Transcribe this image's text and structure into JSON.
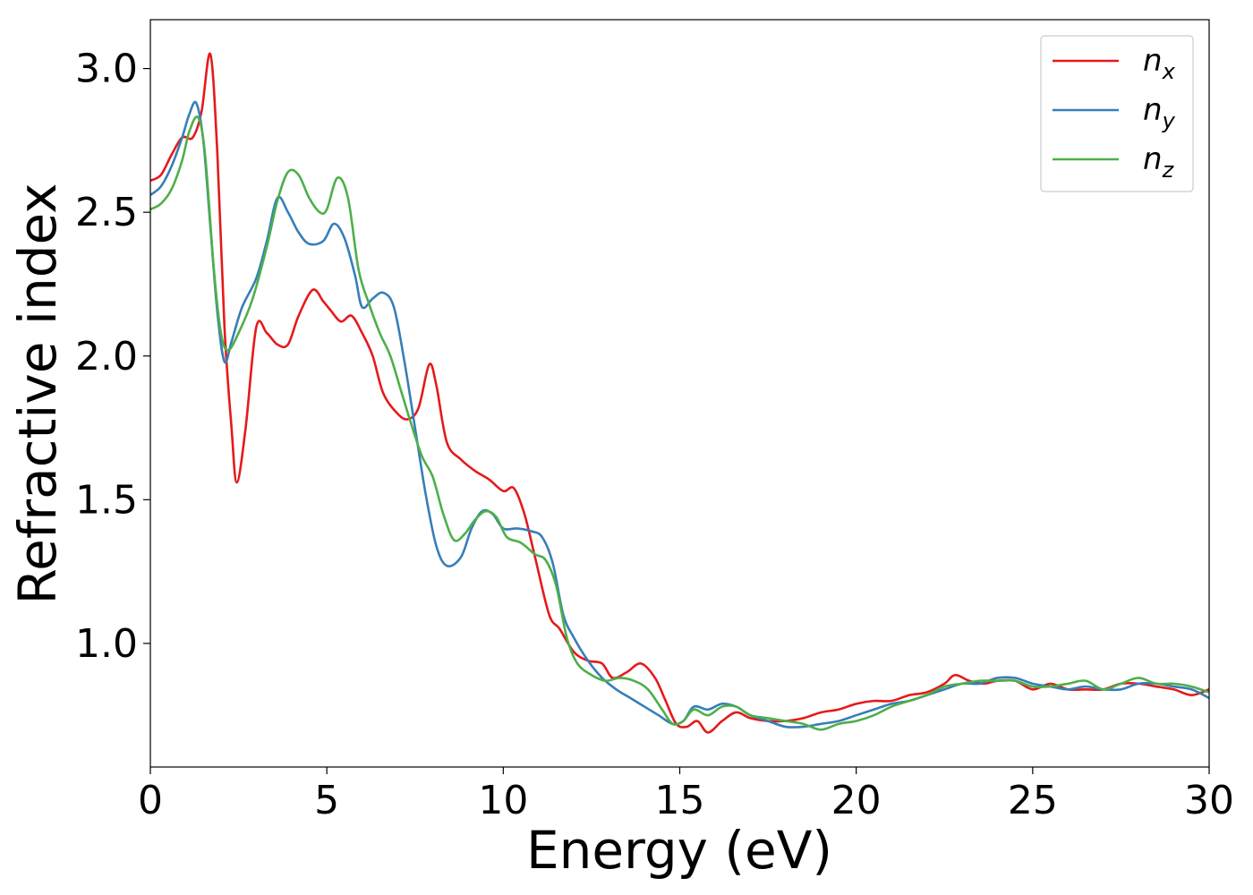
{
  "chart_data": {
    "type": "line",
    "xlabel": "Energy (eV)",
    "ylabel": "Refractive index",
    "xlim": [
      0,
      30
    ],
    "ylim": [
      0.57,
      3.17
    ],
    "xticks": [
      0,
      5,
      10,
      15,
      20,
      25,
      30
    ],
    "xtick_labels": [
      "0",
      "5",
      "10",
      "15",
      "20",
      "25",
      "30"
    ],
    "yticks": [
      1.0,
      1.5,
      2.0,
      2.5,
      3.0
    ],
    "ytick_labels": [
      "1.0",
      "1.5",
      "2.0",
      "2.5",
      "3.0"
    ],
    "grid": false,
    "legend_position": "top-right",
    "series": [
      {
        "name": "n",
        "subscript": "x",
        "color": "#e41a1c",
        "x": [
          0,
          0.3,
          0.6,
          0.9,
          1.2,
          1.45,
          1.7,
          1.9,
          2.1,
          2.3,
          2.45,
          2.7,
          3.0,
          3.3,
          3.6,
          3.9,
          4.2,
          4.6,
          4.9,
          5.1,
          5.4,
          5.7,
          6.0,
          6.3,
          6.6,
          7.0,
          7.3,
          7.6,
          7.9,
          8.1,
          8.4,
          8.8,
          9.2,
          9.6,
          10.0,
          10.3,
          10.6,
          10.9,
          11.3,
          11.6,
          12.0,
          12.4,
          12.8,
          13.1,
          13.5,
          13.9,
          14.3,
          14.6,
          14.9,
          15.2,
          15.5,
          15.8,
          16.2,
          16.6,
          17.0,
          17.5,
          18.0,
          18.5,
          19.0,
          19.5,
          20.0,
          20.5,
          21.0,
          21.5,
          22.0,
          22.5,
          22.8,
          23.2,
          23.6,
          24.0,
          24.5,
          25.0,
          25.5,
          26.0,
          26.5,
          27.0,
          27.5,
          28.0,
          28.5,
          29.0,
          29.5,
          30.0
        ],
        "y": [
          2.61,
          2.63,
          2.7,
          2.76,
          2.76,
          2.85,
          3.05,
          2.7,
          2.1,
          1.75,
          1.56,
          1.75,
          2.1,
          2.08,
          2.04,
          2.04,
          2.14,
          2.23,
          2.19,
          2.16,
          2.12,
          2.14,
          2.08,
          2.0,
          1.87,
          1.8,
          1.78,
          1.82,
          1.97,
          1.9,
          1.7,
          1.64,
          1.6,
          1.57,
          1.53,
          1.54,
          1.45,
          1.3,
          1.1,
          1.05,
          0.97,
          0.94,
          0.93,
          0.88,
          0.9,
          0.93,
          0.88,
          0.8,
          0.72,
          0.71,
          0.73,
          0.69,
          0.73,
          0.76,
          0.74,
          0.73,
          0.73,
          0.74,
          0.76,
          0.77,
          0.79,
          0.8,
          0.8,
          0.82,
          0.83,
          0.86,
          0.89,
          0.87,
          0.86,
          0.87,
          0.87,
          0.84,
          0.86,
          0.84,
          0.84,
          0.84,
          0.86,
          0.86,
          0.85,
          0.84,
          0.82,
          0.84
        ]
      },
      {
        "name": "n",
        "subscript": "y",
        "color": "#377eb8",
        "x": [
          0,
          0.3,
          0.6,
          0.9,
          1.1,
          1.3,
          1.5,
          1.7,
          1.9,
          2.1,
          2.3,
          2.6,
          3.0,
          3.3,
          3.6,
          3.9,
          4.2,
          4.5,
          4.9,
          5.2,
          5.5,
          5.8,
          6.0,
          6.3,
          6.6,
          6.9,
          7.2,
          7.5,
          7.8,
          8.1,
          8.4,
          8.8,
          9.1,
          9.4,
          9.7,
          10.0,
          10.4,
          10.8,
          11.1,
          11.4,
          11.7,
          12.0,
          12.4,
          12.8,
          13.2,
          13.6,
          14.0,
          14.4,
          14.8,
          15.1,
          15.4,
          15.8,
          16.2,
          16.6,
          17.0,
          17.5,
          18.0,
          18.5,
          19.0,
          19.5,
          20.0,
          20.5,
          21.0,
          21.5,
          22.0,
          22.5,
          23.0,
          23.5,
          24.0,
          24.5,
          25.0,
          25.5,
          26.0,
          26.5,
          27.0,
          27.5,
          28.0,
          28.5,
          29.0,
          29.5,
          30.0
        ],
        "y": [
          2.56,
          2.59,
          2.66,
          2.76,
          2.84,
          2.88,
          2.75,
          2.45,
          2.15,
          1.98,
          2.05,
          2.17,
          2.27,
          2.4,
          2.55,
          2.5,
          2.43,
          2.39,
          2.4,
          2.46,
          2.41,
          2.28,
          2.17,
          2.2,
          2.22,
          2.17,
          1.98,
          1.75,
          1.52,
          1.34,
          1.27,
          1.3,
          1.4,
          1.46,
          1.45,
          1.4,
          1.4,
          1.39,
          1.37,
          1.28,
          1.1,
          1.02,
          0.94,
          0.88,
          0.84,
          0.81,
          0.78,
          0.75,
          0.72,
          0.73,
          0.78,
          0.77,
          0.79,
          0.78,
          0.75,
          0.73,
          0.71,
          0.71,
          0.72,
          0.73,
          0.75,
          0.77,
          0.79,
          0.8,
          0.82,
          0.84,
          0.86,
          0.86,
          0.88,
          0.88,
          0.86,
          0.85,
          0.84,
          0.85,
          0.84,
          0.84,
          0.86,
          0.86,
          0.85,
          0.84,
          0.81
        ]
      },
      {
        "name": "n",
        "subscript": "z",
        "color": "#4daf4a",
        "x": [
          0,
          0.3,
          0.6,
          0.9,
          1.1,
          1.35,
          1.55,
          1.8,
          2.0,
          2.2,
          2.5,
          2.9,
          3.3,
          3.6,
          3.9,
          4.2,
          4.5,
          4.8,
          5.0,
          5.3,
          5.6,
          5.9,
          6.2,
          6.5,
          6.8,
          7.1,
          7.4,
          7.7,
          8.0,
          8.3,
          8.6,
          8.9,
          9.2,
          9.5,
          9.8,
          10.1,
          10.5,
          10.9,
          11.2,
          11.5,
          11.8,
          12.1,
          12.5,
          12.9,
          13.3,
          13.7,
          14.1,
          14.5,
          14.8,
          15.1,
          15.4,
          15.8,
          16.2,
          16.6,
          17.0,
          17.5,
          18.0,
          18.5,
          19.0,
          19.5,
          20.0,
          20.5,
          21.0,
          21.5,
          22.0,
          22.5,
          23.0,
          23.5,
          24.0,
          24.5,
          25.0,
          25.5,
          26.0,
          26.5,
          27.0,
          27.5,
          28.0,
          28.5,
          29.0,
          29.5,
          30.0
        ],
        "y": [
          2.51,
          2.53,
          2.58,
          2.68,
          2.78,
          2.83,
          2.7,
          2.3,
          2.08,
          2.02,
          2.08,
          2.2,
          2.38,
          2.54,
          2.64,
          2.63,
          2.55,
          2.5,
          2.51,
          2.62,
          2.55,
          2.3,
          2.18,
          2.08,
          2.0,
          1.88,
          1.76,
          1.65,
          1.58,
          1.45,
          1.36,
          1.38,
          1.43,
          1.46,
          1.44,
          1.37,
          1.35,
          1.31,
          1.29,
          1.2,
          1.02,
          0.93,
          0.89,
          0.87,
          0.88,
          0.87,
          0.84,
          0.77,
          0.72,
          0.73,
          0.77,
          0.75,
          0.78,
          0.78,
          0.75,
          0.74,
          0.73,
          0.72,
          0.7,
          0.72,
          0.73,
          0.75,
          0.78,
          0.8,
          0.82,
          0.85,
          0.86,
          0.87,
          0.87,
          0.87,
          0.85,
          0.85,
          0.86,
          0.87,
          0.84,
          0.86,
          0.88,
          0.86,
          0.86,
          0.85,
          0.83
        ]
      }
    ]
  }
}
